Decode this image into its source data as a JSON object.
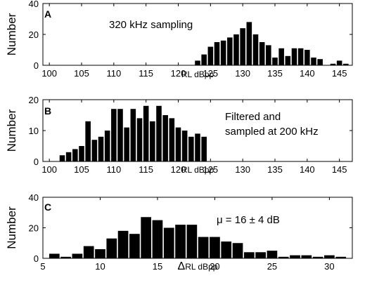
{
  "chart_data": [
    {
      "type": "bar",
      "panel": "A",
      "annotation_lines": [
        "320 kHz sampling"
      ],
      "xlabel": "RL dBpp",
      "ylabel": "Number",
      "xlim": [
        99,
        147
      ],
      "ylim": [
        0,
        40
      ],
      "xticks": [
        100,
        105,
        110,
        115,
        120,
        125,
        130,
        135,
        140,
        145
      ],
      "yticks": [
        0,
        20,
        40
      ],
      "bin_width": 1,
      "x": [
        123,
        124,
        125,
        126,
        127,
        128,
        129,
        130,
        131,
        132,
        133,
        134,
        135,
        136,
        137,
        138,
        139,
        140,
        141,
        142,
        143,
        144,
        145,
        146
      ],
      "values": [
        3,
        7,
        12,
        15,
        16,
        18,
        20,
        24,
        28,
        20,
        15,
        13,
        5,
        11,
        6,
        11,
        11,
        10,
        5,
        4,
        0,
        1,
        3,
        1
      ]
    },
    {
      "type": "bar",
      "panel": "B",
      "annotation_lines": [
        "Filtered and",
        "sampled at 200 kHz"
      ],
      "xlabel": "RL dBpp",
      "ylabel": "Number",
      "xlim": [
        99,
        147
      ],
      "ylim": [
        0,
        20
      ],
      "xticks": [
        100,
        105,
        110,
        115,
        120,
        125,
        130,
        135,
        140,
        145
      ],
      "yticks": [
        0,
        10,
        20
      ],
      "bin_width": 1,
      "x": [
        102,
        103,
        104,
        105,
        106,
        107,
        108,
        109,
        110,
        111,
        112,
        113,
        114,
        115,
        116,
        117,
        118,
        119,
        120,
        121,
        122,
        123,
        124
      ],
      "values": [
        2,
        3,
        4,
        5,
        13,
        7,
        8,
        10,
        17,
        17,
        11,
        17,
        14,
        18,
        13,
        18,
        15,
        14,
        11,
        10,
        8,
        9,
        8
      ]
    },
    {
      "type": "bar",
      "panel": "C",
      "annotation_lines": [
        "μ = 16 ± 4 dB"
      ],
      "xlabel_delta": "Δ",
      "xlabel": "RL dBpp",
      "ylabel": "Number",
      "xlim": [
        5,
        32
      ],
      "ylim": [
        0,
        40
      ],
      "xticks": [
        5,
        10,
        15,
        20,
        25,
        30
      ],
      "yticks": [
        0,
        20,
        40
      ],
      "bin_width": 1,
      "x": [
        6,
        7,
        8,
        9,
        10,
        11,
        12,
        13,
        14,
        15,
        16,
        17,
        18,
        19,
        20,
        21,
        22,
        23,
        24,
        25,
        26,
        27,
        28,
        29,
        30,
        31
      ],
      "values": [
        3,
        1,
        3,
        8,
        6,
        13,
        18,
        16,
        27,
        25,
        20,
        22,
        22,
        14,
        14,
        11,
        10,
        4,
        4,
        5,
        1,
        2,
        2,
        1,
        2,
        1
      ]
    }
  ]
}
